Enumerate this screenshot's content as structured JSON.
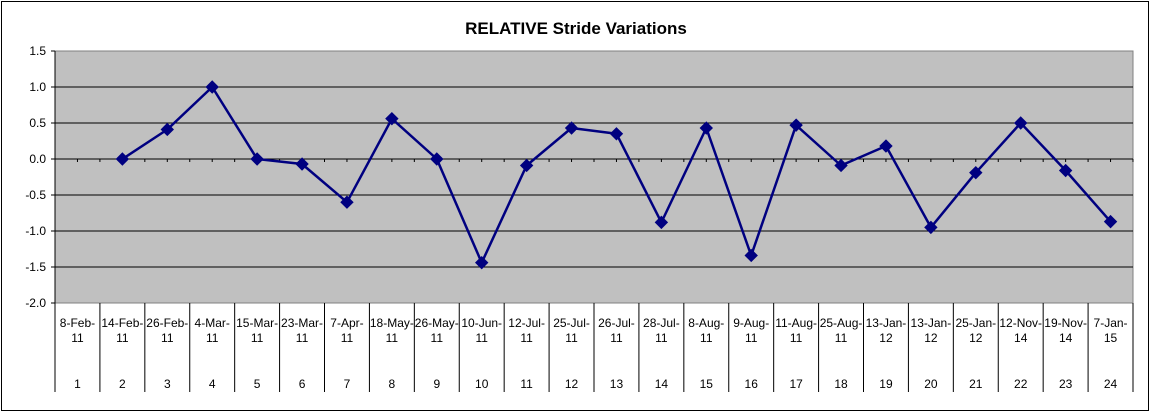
{
  "chart_data": {
    "type": "line",
    "title": "RELATIVE Stride Variations",
    "xlabel": "",
    "ylabel": "",
    "ylim": [
      -2.0,
      1.5
    ],
    "yticks": [
      "1.5",
      "1.0",
      "0.5",
      "0.0",
      "-0.5",
      "-1.0",
      "-1.5",
      "-2.0"
    ],
    "grid": true,
    "legend": "none",
    "colors": {
      "plot_background": "#C0C0C0",
      "series_line": "#000080",
      "gridline": "#000000"
    },
    "categories": [
      {
        "date": "8-Feb-11",
        "index": "1"
      },
      {
        "date": "14-Feb-11",
        "index": "2"
      },
      {
        "date": "26-Feb-11",
        "index": "3"
      },
      {
        "date": "4-Mar-11",
        "index": "4"
      },
      {
        "date": "15-Mar-11",
        "index": "5"
      },
      {
        "date": "23-Mar-11",
        "index": "6"
      },
      {
        "date": "7-Apr-11",
        "index": "7"
      },
      {
        "date": "18-May-11",
        "index": "8"
      },
      {
        "date": "26-May-11",
        "index": "9"
      },
      {
        "date": "10-Jun-11",
        "index": "10"
      },
      {
        "date": "12-Jul-11",
        "index": "11"
      },
      {
        "date": "25-Jul-11",
        "index": "12"
      },
      {
        "date": "26-Jul-11",
        "index": "13"
      },
      {
        "date": "28-Jul-11",
        "index": "14"
      },
      {
        "date": "8-Aug-11",
        "index": "15"
      },
      {
        "date": "9-Aug-11",
        "index": "16"
      },
      {
        "date": "11-Aug-11",
        "index": "17"
      },
      {
        "date": "25-Aug-11",
        "index": "18"
      },
      {
        "date": "13-Jan-12",
        "index": "19"
      },
      {
        "date": "13-Jan-12",
        "index": "20"
      },
      {
        "date": "25-Jan-12",
        "index": "21"
      },
      {
        "date": "12-Nov-14",
        "index": "22"
      },
      {
        "date": "19-Nov-14",
        "index": "23"
      },
      {
        "date": "7-Jan-15",
        "index": "24"
      }
    ],
    "series": [
      {
        "values": [
          null,
          0.0,
          0.41,
          1.0,
          0.0,
          -0.07,
          -0.6,
          0.56,
          0.0,
          -1.44,
          -0.09,
          0.43,
          0.35,
          -0.88,
          0.43,
          -1.34,
          0.47,
          -0.09,
          0.18,
          -0.95,
          -0.19,
          0.5,
          -0.16,
          -0.87
        ]
      }
    ]
  }
}
